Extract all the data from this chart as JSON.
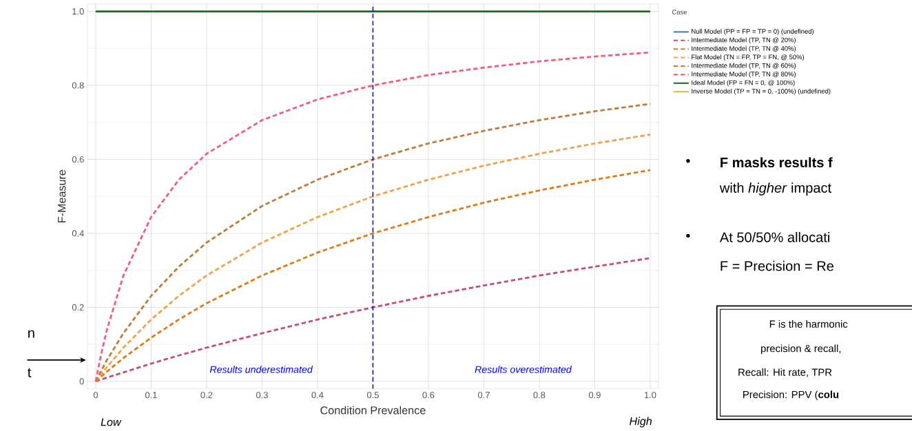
{
  "chart_data": {
    "type": "line",
    "xlabel": "Condition Prevalence",
    "ylabel": "F-Measure",
    "legend_title": "Case",
    "x": [
      0,
      0.01,
      0.02,
      0.05,
      0.1,
      0.15,
      0.2,
      0.3,
      0.4,
      0.5,
      0.6,
      0.7,
      0.8,
      0.9,
      1.0
    ],
    "series": [
      {
        "name": "Null Model (PP = FP = TP = 0)  (undefined)",
        "color": "#4472c4",
        "line_style": "solid",
        "values": [
          null,
          null,
          null,
          null,
          null,
          null,
          null,
          null,
          null,
          null,
          null,
          null,
          null,
          null,
          null
        ]
      },
      {
        "name": "Intermediate Model (TP, TN @ 20%)",
        "color": "#c8506a",
        "line_style": "dashed",
        "values": [
          0,
          0.005,
          0.01,
          0.024,
          0.048,
          0.07,
          0.091,
          0.13,
          0.167,
          0.2,
          0.231,
          0.259,
          0.286,
          0.31,
          0.333
        ]
      },
      {
        "name": "Intermediate Model (TP, TN @ 40%)",
        "color": "#e07b1a",
        "line_style": "dashed",
        "values": [
          0,
          0.013,
          0.026,
          0.063,
          0.118,
          0.167,
          0.211,
          0.286,
          0.348,
          0.4,
          0.444,
          0.483,
          0.516,
          0.545,
          0.571
        ]
      },
      {
        "name": "Flat Model (TN = FP, TP = FN, @ 50%)",
        "color": "#f5a04a",
        "line_style": "dashed",
        "values": [
          0,
          0.02,
          0.038,
          0.091,
          0.167,
          0.231,
          0.286,
          0.375,
          0.444,
          0.5,
          0.545,
          0.583,
          0.615,
          0.643,
          0.667
        ]
      },
      {
        "name": "Intermediate Model (TP, TN @ 60%)",
        "color": "#c17c3a",
        "line_style": "dashed",
        "values": [
          0,
          0.029,
          0.057,
          0.13,
          0.231,
          0.31,
          0.375,
          0.474,
          0.545,
          0.6,
          0.643,
          0.677,
          0.706,
          0.73,
          0.75
        ]
      },
      {
        "name": "Intermediate Model (TP, TN @ 80%)",
        "color": "#f0607e",
        "line_style": "dashed",
        "values": [
          0,
          0.074,
          0.138,
          0.286,
          0.444,
          0.545,
          0.615,
          0.706,
          0.762,
          0.8,
          0.828,
          0.848,
          0.865,
          0.878,
          0.889
        ]
      },
      {
        "name": "Ideal Model (FP = FN = 0, @ 100%)",
        "color": "#1a6e1a",
        "line_style": "solid",
        "values": [
          1,
          1,
          1,
          1,
          1,
          1,
          1,
          1,
          1,
          1,
          1,
          1,
          1,
          1,
          1
        ]
      },
      {
        "name": "Inverse Model (TP = TN = 0, -100%) (undefined)",
        "color": "#c8c83a",
        "line_style": "solid",
        "values": [
          null,
          null,
          null,
          null,
          null,
          null,
          null,
          null,
          null,
          null,
          null,
          null,
          null,
          null,
          null
        ]
      }
    ],
    "xlim": [
      -0.015,
      1.015
    ],
    "ylim": [
      -0.02,
      1.02
    ],
    "xticks": [
      0,
      0.1,
      0.2,
      0.3,
      0.4,
      0.5,
      0.6,
      0.7,
      0.8,
      0.9,
      {
        "value": 1,
        "label": "1.0"
      }
    ],
    "yticks": [
      0,
      0.2,
      0.4,
      0.6,
      0.8,
      {
        "value": 1,
        "label": "1.0"
      }
    ],
    "grid": true,
    "legend": "right",
    "marker": "none",
    "ref_lines": [
      {
        "axis": "x",
        "value": 0.5,
        "color": "#0000ff",
        "line_style": "dashed"
      }
    ],
    "annotations": [
      "Results underestimated",
      "Results overestimated",
      "Low",
      "High",
      "n",
      "t",
      "•",
      "F masks results f",
      "with *higher* impact",
      "•",
      "At 50/50% allocati",
      "F = Precision = Re",
      "F is the harmonic",
      "precision & recall,",
      "Recall: Hit rate, TPR",
      "Precision: PPV  (**colu**"
    ]
  }
}
